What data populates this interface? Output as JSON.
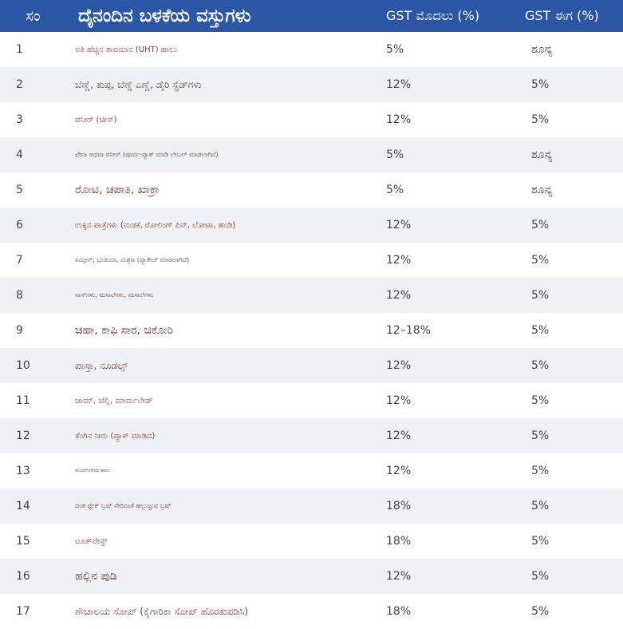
{
  "table": {
    "headers": {
      "no": "ಸಂ",
      "item": "ದೈನಂದಿನ ಬಳಕೆಯ ವಸ್ತುಗಳು",
      "gst_before": "GST ಮೊದಲು (%)",
      "gst_now": "GST ಈಗ (%)"
    },
    "rows": [
      {
        "no": "1",
        "item": "ಅತಿ ಹೆಚ್ಚಿನ ತಾಪಮಾನ (UHT) ಹಾಲು",
        "gst_before": "5%",
        "gst_now": "ಶೂನ್ಯ"
      },
      {
        "no": "2",
        "item": "ಬೆಣ್ಣೆ, ತುಪ್ಪ, ಬೆಣ್ಣೆ ಎಣ್ಣೆ, ಡೈರಿ ಸ್ಪ್ರೆಡ್‌ಗಳು",
        "gst_before": "12%",
        "gst_now": "5%"
      },
      {
        "no": "3",
        "item": "ಪನೀರ್ (ಚೀಸ್)",
        "gst_before": "12%",
        "gst_now": "5%"
      },
      {
        "no": "4",
        "item": "ಛೇನಾ ಅಥವಾ ಪನೀರ್ (ಪೂರ್ವ-ಪ್ಯಾಕ್ ಮಾಡಿ ಲೇಬಲ್ ಮಾಡಲಾಗಿದೆ)",
        "gst_before": "5%",
        "gst_now": "ಶೂನ್ಯ"
      },
      {
        "no": "5",
        "item": "ರೋಟಿ, ಚಪಾತಿ, ಖಾಕ್ರಾ",
        "gst_before": "5%",
        "gst_now": "ಶೂನ್ಯ"
      },
      {
        "no": "6",
        "item": "ಉಕ್ಕಿನ ಪಾತ್ರೆಗಳು (ಮಡಕೆ, ರೋಲಿಂಗ್ ಪಿನ್, ಲೋಟಾ, ಹಂಡಿ)",
        "gst_before": "12%",
        "gst_now": "5%"
      },
      {
        "no": "7",
        "item": "ನಮ್ಕೀನ್, ಭುಜಿಯಾ, ಮಿಶ್ರಣ (ಪ್ಯಾಕೇಜ್ ಮಾಡಲಾಗಿದೆ)",
        "gst_before": "12%",
        "gst_now": "5%"
      },
      {
        "no": "8",
        "item": "ಸಾಸ್‌ಗಳು, ಮಸಾಲೆಗಳು, ಮಸಾಲೆಗಳು",
        "gst_before": "12%",
        "gst_now": "5%"
      },
      {
        "no": "9",
        "item": "ಚಹಾ, ಕಾಫಿ ಸಾರ, ಚಿಕೋರಿ",
        "gst_before": "12–18%",
        "gst_now": "5%"
      },
      {
        "no": "10",
        "item": "ಪಾಸ್ತಾ, ನೂಡಲ್ಸ್",
        "gst_before": "12%",
        "gst_now": "5%"
      },
      {
        "no": "11",
        "item": "ಜಾಮ್, ಜೆಲ್ಲಿ, ಮಾರ್ಮಲೇಡ್",
        "gst_before": "12%",
        "gst_now": "5%"
      },
      {
        "no": "12",
        "item": "ತೆಂಗಿನ ನೀರು (ಪ್ಯಾಕ್ ಮಾಡಿದ)",
        "gst_before": "12%",
        "gst_now": "5%"
      },
      {
        "no": "13",
        "item": "ಮಂದಗೊಳಿಸಿದ ಹಾಲು",
        "gst_before": "12%",
        "gst_now": "5%"
      },
      {
        "no": "14",
        "item": "ದಂತ ಫ್ಲೇಕ್ ಬ್ರಷ್ ನೇರಿದಂತೆ ಹಲ್ಲುಜ್ಜುವ ಬ್ರಷ್",
        "gst_before": "18%",
        "gst_now": "5%"
      },
      {
        "no": "15",
        "item": "ಟೂತ್‌ಪೇಸ್ಟ್",
        "gst_before": "18%",
        "gst_now": "5%"
      },
      {
        "no": "16",
        "item": "ಹಲ್ಲಿನ ಪುಡಿ",
        "gst_before": "12%",
        "gst_now": "5%"
      },
      {
        "no": "17",
        "item": "ಶೌಚಾಲಯ ಸೋಪ್ (ಕೈಗಾರಿಕಾ ಸೋಪ್ ಹೊರತುಪಡಿಸಿ)",
        "gst_before": "18%",
        "gst_now": "5%"
      }
    ]
  },
  "colors": {
    "header_bg": "#2b56a6",
    "header_text": "#ffffff",
    "row_alt_bg": "#eef1f6",
    "item_text": "#7a3a30",
    "item_text_alt": "#3a5fa8"
  }
}
